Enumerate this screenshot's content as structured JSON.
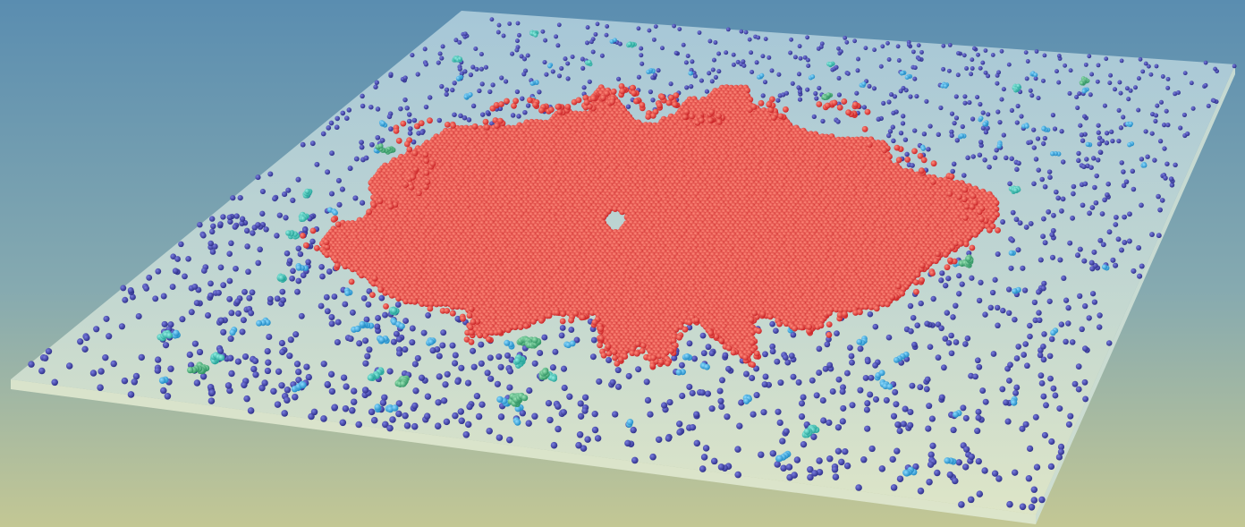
{
  "scene": {
    "description_visible_text": "",
    "background_colors": {
      "top": "#5a8db0",
      "bottom": "#c3c794"
    },
    "slab_colors": {
      "top_face": "#d6e8ea",
      "edge": "#e3ebd0"
    },
    "particle_colors": {
      "monomer": "#3a3ba0",
      "small_cluster": "#2aa0d8",
      "medium_cluster": "#2fc1b7",
      "large_cluster": "#3bb07a",
      "main_island": "#e8393a"
    },
    "particle_counts": {
      "monomers": 1500,
      "small_clusters": 70,
      "medium_clusters": 18,
      "large_clusters": 9,
      "main_island_approx": 3000
    }
  }
}
